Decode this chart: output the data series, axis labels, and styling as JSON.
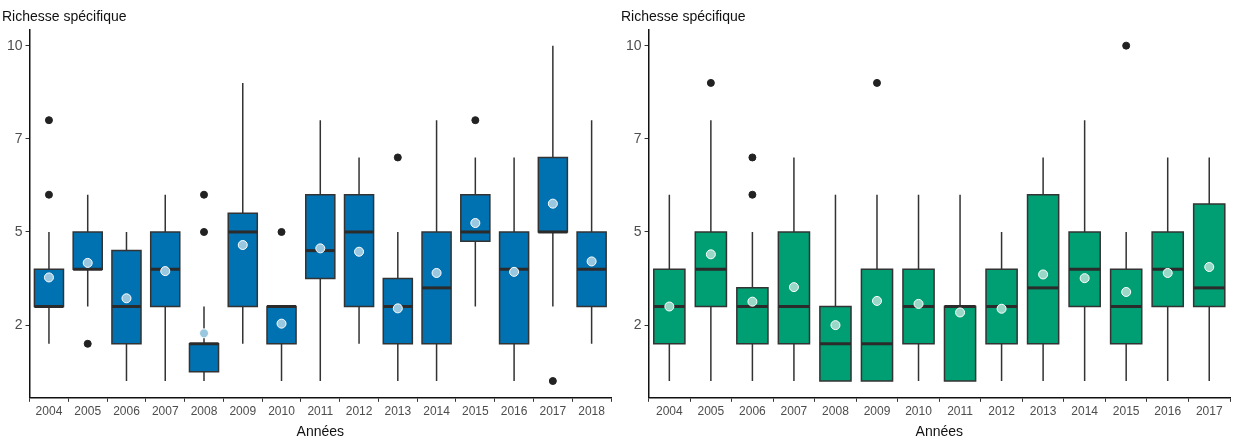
{
  "chart_data": [
    {
      "type": "box",
      "ylabel": "Richesse spécifique",
      "xlabel": "Années",
      "categories": [
        "2004",
        "2005",
        "2006",
        "2007",
        "2008",
        "2009",
        "2010",
        "2011",
        "2012",
        "2013",
        "2014",
        "2015",
        "2016",
        "2017",
        "2018"
      ],
      "ylim": [
        0.55,
        10.42
      ],
      "yticks": [
        {
          "value": 2.5,
          "label": "2"
        },
        {
          "value": 5,
          "label": "5"
        },
        {
          "value": 7.5,
          "label": "7"
        },
        {
          "value": 10,
          "label": "10"
        }
      ],
      "grid": false,
      "legend": false,
      "series": [
        {
          "color": "#0072b2",
          "boxes": [
            {
              "low": 2,
              "q1": 3,
              "median": 3,
              "q3": 4,
              "high": 5,
              "mean": 3.78,
              "outliers": [
                6,
                8
              ]
            },
            {
              "low": 3,
              "q1": 4,
              "median": 4,
              "q3": 5,
              "high": 6,
              "mean": 4.17,
              "outliers": [
                2
              ]
            },
            {
              "low": 1,
              "q1": 2,
              "median": 3,
              "q3": 4.5,
              "high": 5,
              "mean": 3.22
            },
            {
              "low": 1,
              "q1": 3,
              "median": 4,
              "q3": 5,
              "high": 6,
              "mean": 3.95
            },
            {
              "low": 1,
              "q1": 1.25,
              "median": 2,
              "q3": 2,
              "high": 3,
              "mean": 2.28,
              "outliers": [
                5,
                6
              ]
            },
            {
              "low": 2,
              "q1": 3,
              "median": 5,
              "q3": 5.5,
              "high": 9,
              "mean": 4.65
            },
            {
              "low": 1,
              "q1": 2,
              "median": 3,
              "q3": 3,
              "high": 3,
              "mean": 2.54,
              "outliers": [
                5
              ]
            },
            {
              "low": 1,
              "q1": 3.75,
              "median": 4.5,
              "q3": 6,
              "high": 8,
              "mean": 4.56
            },
            {
              "low": 2,
              "q1": 3,
              "median": 5,
              "q3": 6,
              "high": 7,
              "mean": 4.47
            },
            {
              "low": 1,
              "q1": 2,
              "median": 3,
              "q3": 3.75,
              "high": 5,
              "mean": 2.95,
              "outliers": [
                7
              ]
            },
            {
              "low": 1,
              "q1": 2,
              "median": 3.5,
              "q3": 5,
              "high": 8,
              "mean": 3.9
            },
            {
              "low": 3,
              "q1": 4.75,
              "median": 5,
              "q3": 6,
              "high": 7,
              "mean": 5.24,
              "outliers": [
                8
              ]
            },
            {
              "low": 1,
              "q1": 2,
              "median": 4,
              "q3": 5,
              "high": 7,
              "mean": 3.93
            },
            {
              "low": 3,
              "q1": 5,
              "median": 5,
              "q3": 7,
              "high": 10,
              "mean": 5.76,
              "outliers": [
                1
              ]
            },
            {
              "low": 2,
              "q1": 3,
              "median": 4,
              "q3": 5,
              "high": 8,
              "mean": 4.21
            }
          ]
        }
      ]
    },
    {
      "type": "box",
      "ylabel": "Richesse spécifique",
      "xlabel": "Années",
      "categories": [
        "2004",
        "2005",
        "2006",
        "2007",
        "2008",
        "2009",
        "2010",
        "2011",
        "2012",
        "2013",
        "2014",
        "2015",
        "2016",
        "2017"
      ],
      "ylim": [
        0.55,
        10.42
      ],
      "yticks": [
        {
          "value": 2.5,
          "label": "2"
        },
        {
          "value": 5,
          "label": "5"
        },
        {
          "value": 7.5,
          "label": "7"
        },
        {
          "value": 10,
          "label": "10"
        }
      ],
      "grid": false,
      "legend": false,
      "series": [
        {
          "color": "#009e73",
          "boxes": [
            {
              "low": 1,
              "q1": 2,
              "median": 3,
              "q3": 4,
              "high": 6,
              "mean": 3.0
            },
            {
              "low": 1,
              "q1": 3,
              "median": 4,
              "q3": 5,
              "high": 8,
              "mean": 4.4,
              "outliers": [
                9
              ]
            },
            {
              "low": 1,
              "q1": 2,
              "median": 3,
              "q3": 3.5,
              "high": 5,
              "mean": 3.13,
              "outliers": [
                6,
                7
              ]
            },
            {
              "low": 1,
              "q1": 2,
              "median": 3,
              "q3": 5,
              "high": 7,
              "mean": 3.52
            },
            {
              "low": 1,
              "q1": 1,
              "median": 2,
              "q3": 3,
              "high": 6,
              "mean": 2.5
            },
            {
              "low": 1,
              "q1": 1,
              "median": 2,
              "q3": 4,
              "high": 6,
              "mean": 3.15,
              "outliers": [
                9
              ]
            },
            {
              "low": 1,
              "q1": 2,
              "median": 3,
              "q3": 4,
              "high": 6,
              "mean": 3.07
            },
            {
              "low": 1,
              "q1": 1,
              "median": 3,
              "q3": 3,
              "high": 6,
              "mean": 2.84
            },
            {
              "low": 1,
              "q1": 2,
              "median": 3,
              "q3": 4,
              "high": 5,
              "mean": 2.94
            },
            {
              "low": 1,
              "q1": 2,
              "median": 3.5,
              "q3": 6,
              "high": 7,
              "mean": 3.86
            },
            {
              "low": 1,
              "q1": 3,
              "median": 4,
              "q3": 5,
              "high": 8,
              "mean": 3.76
            },
            {
              "low": 1,
              "q1": 2,
              "median": 3,
              "q3": 4,
              "high": 5,
              "mean": 3.39,
              "outliers": [
                10
              ]
            },
            {
              "low": 1,
              "q1": 3,
              "median": 4,
              "q3": 5,
              "high": 7,
              "mean": 3.9
            },
            {
              "low": 1,
              "q1": 3,
              "median": 3.5,
              "q3": 5.75,
              "high": 7,
              "mean": 4.06
            }
          ]
        }
      ]
    }
  ]
}
